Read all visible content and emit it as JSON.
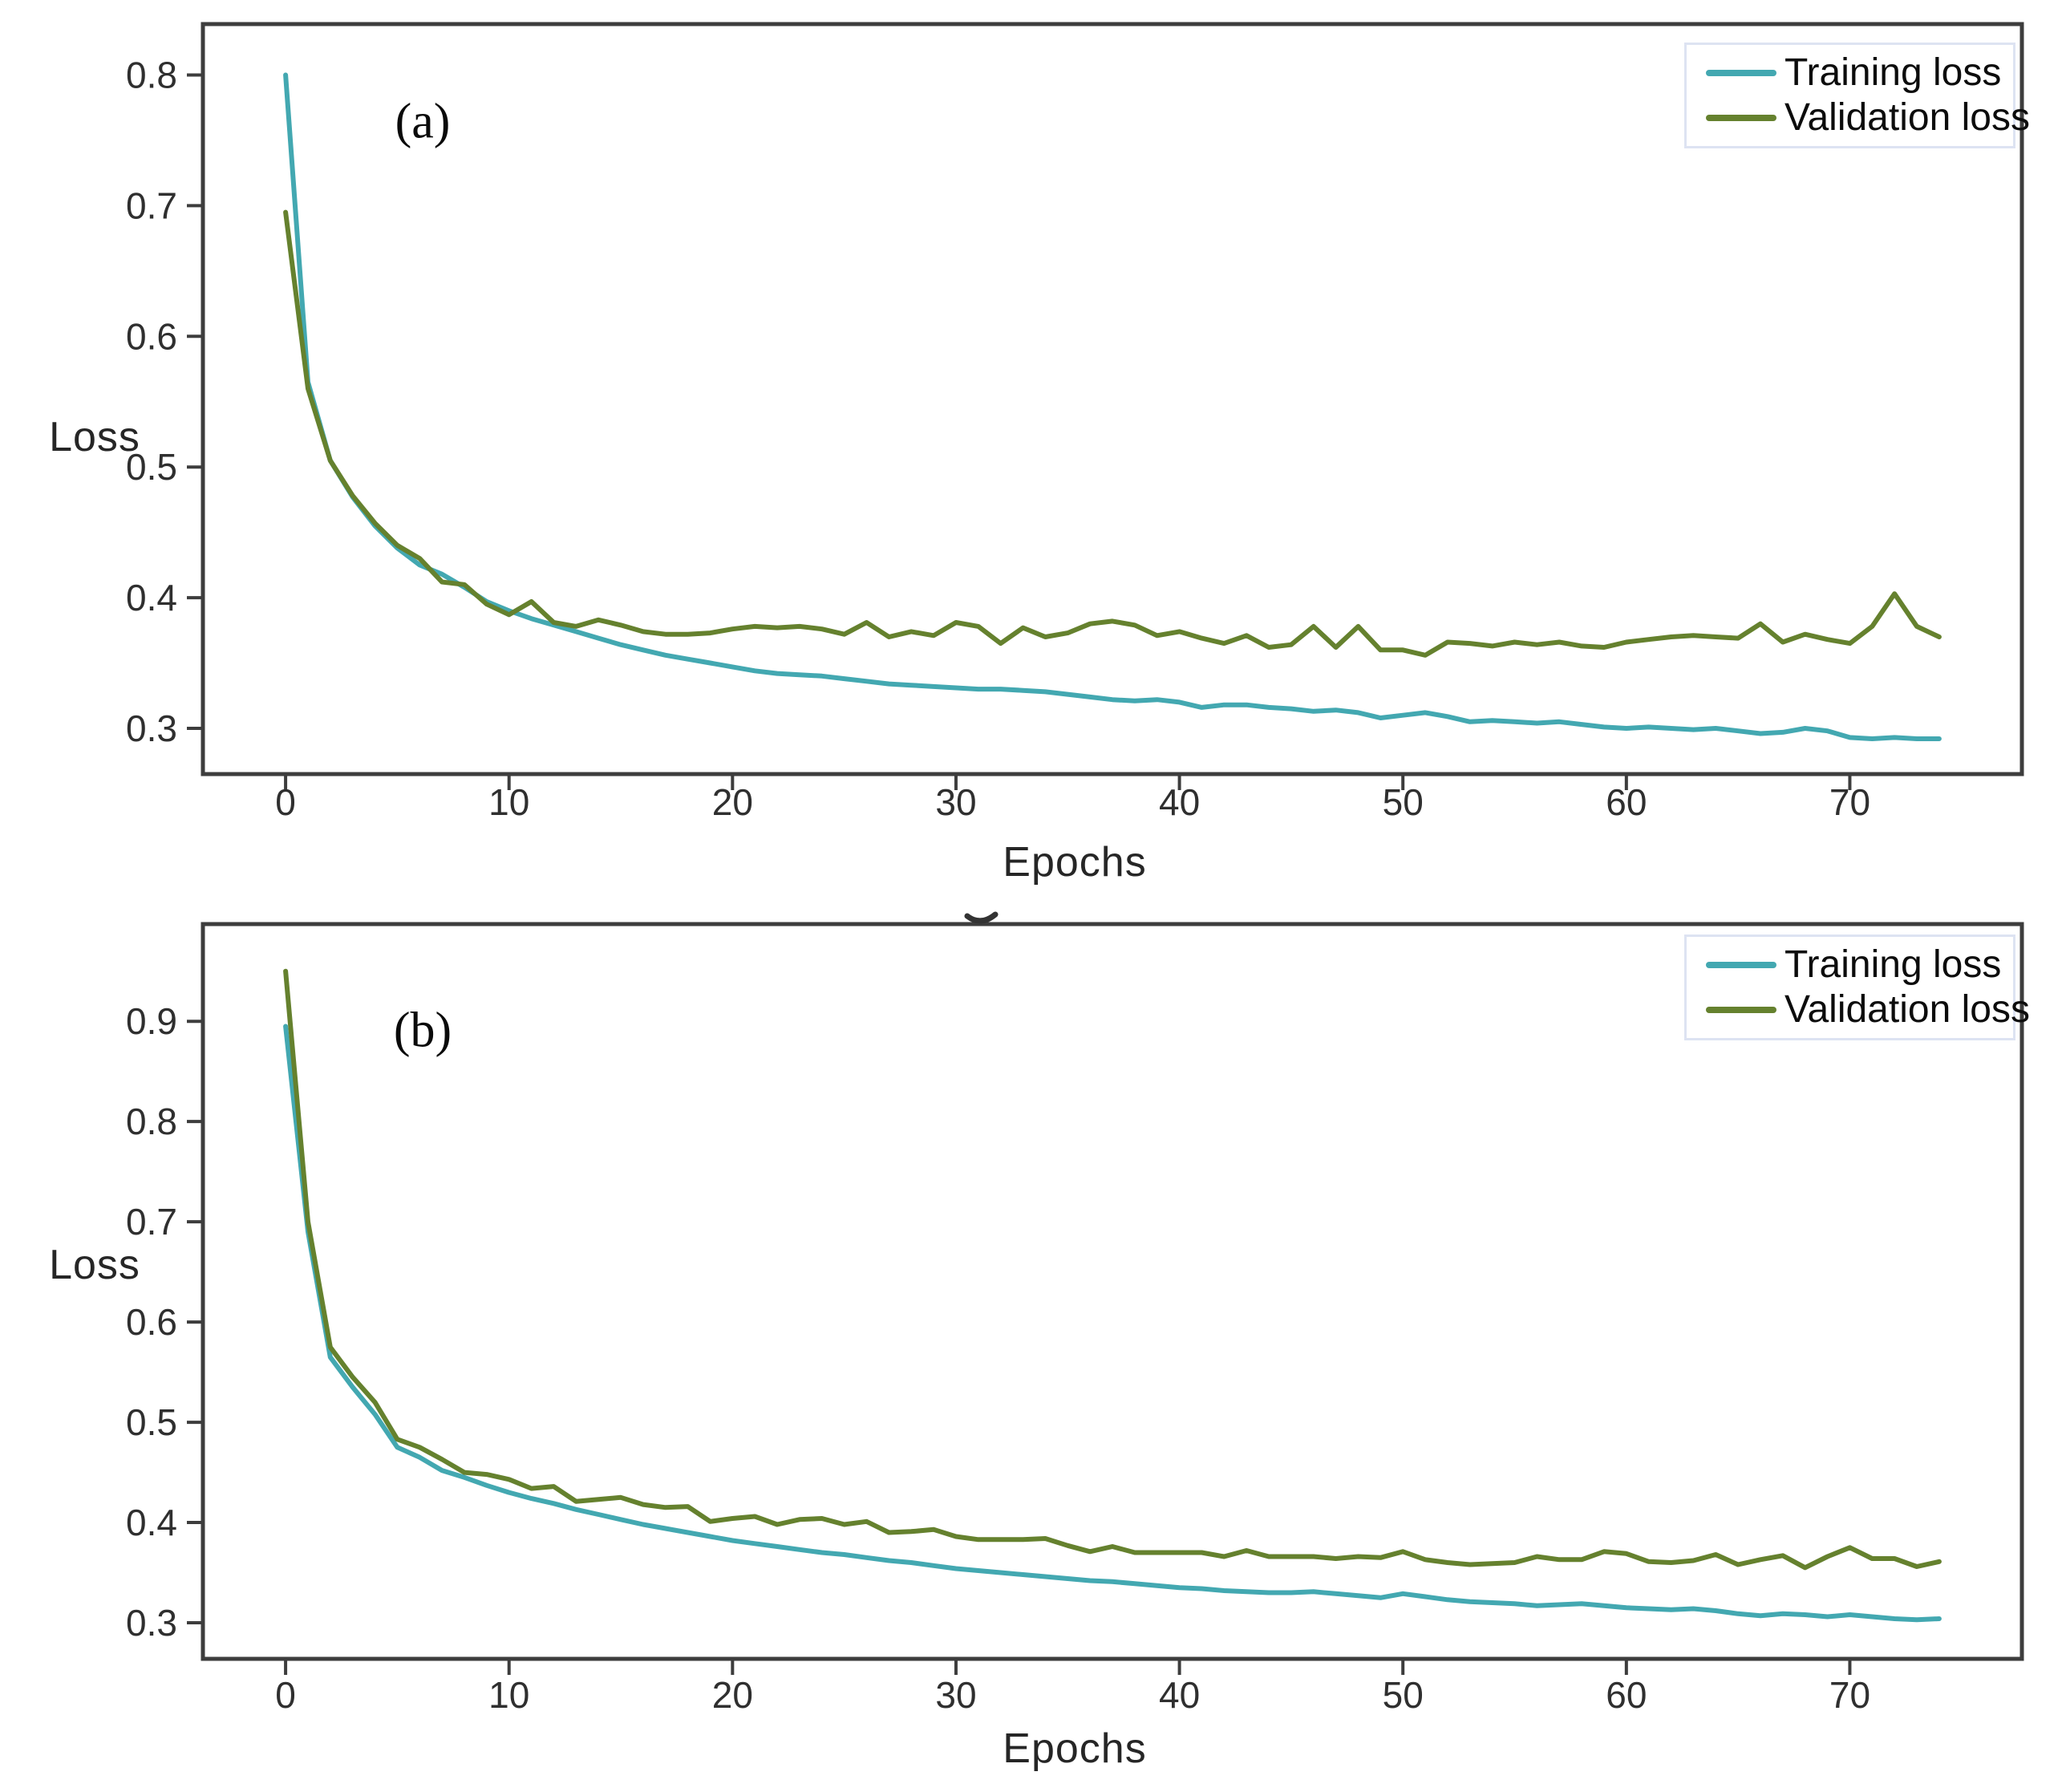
{
  "figure": {
    "background": "#ffffff",
    "axis_color": "#3d3d3d",
    "tick_label_color": "#2f2f2f",
    "train_color": "#43a8b1",
    "val_color": "#65812e",
    "legend_border_color": "#dde3f2"
  },
  "chart_data": [
    {
      "id": "panel-a",
      "type": "line",
      "panel_label": "(a)",
      "xlabel": "Epochs",
      "ylabel": "Loss",
      "x_ticks": [
        0,
        10,
        20,
        30,
        40,
        50,
        60,
        70
      ],
      "y_ticks": [
        0.8,
        0.7,
        0.6,
        0.5,
        0.4,
        0.3
      ],
      "xlim": [
        -3.7,
        77.7
      ],
      "ylim": [
        0.265,
        0.839
      ],
      "x_range": [
        0,
        74
      ],
      "grid": false,
      "legend_position": "upper right",
      "legend": [
        {
          "label": "Training loss",
          "color": "#43a8b1"
        },
        {
          "label": "Validation loss",
          "color": "#65812e"
        }
      ],
      "series": [
        {
          "name": "Training loss",
          "color": "#43a8b1",
          "values": [
            0.8,
            0.565,
            0.505,
            0.477,
            0.455,
            0.438,
            0.425,
            0.418,
            0.408,
            0.397,
            0.39,
            0.384,
            0.379,
            0.374,
            0.369,
            0.364,
            0.36,
            0.356,
            0.353,
            0.35,
            0.347,
            0.344,
            0.342,
            0.341,
            0.34,
            0.338,
            0.336,
            0.334,
            0.333,
            0.332,
            0.331,
            0.33,
            0.33,
            0.329,
            0.328,
            0.326,
            0.324,
            0.322,
            0.321,
            0.322,
            0.32,
            0.316,
            0.318,
            0.318,
            0.316,
            0.315,
            0.313,
            0.314,
            0.312,
            0.308,
            0.31,
            0.312,
            0.309,
            0.305,
            0.306,
            0.305,
            0.304,
            0.305,
            0.303,
            0.301,
            0.3,
            0.301,
            0.3,
            0.299,
            0.3,
            0.298,
            0.296,
            0.297,
            0.3,
            0.298,
            0.293,
            0.292,
            0.293,
            0.292,
            0.292
          ]
        },
        {
          "name": "Validation loss",
          "color": "#65812e",
          "values": [
            0.695,
            0.56,
            0.505,
            0.478,
            0.457,
            0.44,
            0.43,
            0.412,
            0.41,
            0.395,
            0.387,
            0.397,
            0.381,
            0.378,
            0.383,
            0.379,
            0.374,
            0.372,
            0.372,
            0.373,
            0.376,
            0.378,
            0.377,
            0.378,
            0.376,
            0.372,
            0.381,
            0.37,
            0.374,
            0.371,
            0.381,
            0.378,
            0.365,
            0.377,
            0.37,
            0.373,
            0.38,
            0.382,
            0.379,
            0.371,
            0.374,
            0.369,
            0.365,
            0.371,
            0.362,
            0.364,
            0.378,
            0.362,
            0.378,
            0.36,
            0.36,
            0.356,
            0.366,
            0.365,
            0.363,
            0.366,
            0.364,
            0.366,
            0.363,
            0.362,
            0.366,
            0.368,
            0.37,
            0.371,
            0.37,
            0.369,
            0.38,
            0.366,
            0.372,
            0.368,
            0.365,
            0.378,
            0.403,
            0.378,
            0.37
          ]
        }
      ]
    },
    {
      "id": "panel-b",
      "type": "line",
      "panel_label": "(b)",
      "xlabel": "Epochs",
      "ylabel": "Loss",
      "x_ticks": [
        0,
        10,
        20,
        30,
        40,
        50,
        60,
        70
      ],
      "y_ticks": [
        0.9,
        0.8,
        0.7,
        0.6,
        0.5,
        0.4,
        0.3
      ],
      "xlim": [
        -3.7,
        77.7
      ],
      "ylim": [
        0.264,
        0.997
      ],
      "x_range": [
        0,
        74
      ],
      "grid": false,
      "legend_position": "upper right",
      "legend": [
        {
          "label": "Training loss",
          "color": "#43a8b1"
        },
        {
          "label": "Validation loss",
          "color": "#65812e"
        }
      ],
      "series": [
        {
          "name": "Training loss",
          "color": "#43a8b1",
          "values": [
            0.895,
            0.69,
            0.565,
            0.535,
            0.508,
            0.475,
            0.465,
            0.452,
            0.445,
            0.437,
            0.43,
            0.424,
            0.419,
            0.413,
            0.408,
            0.403,
            0.398,
            0.394,
            0.39,
            0.386,
            0.382,
            0.379,
            0.376,
            0.373,
            0.37,
            0.368,
            0.365,
            0.362,
            0.36,
            0.357,
            0.354,
            0.352,
            0.35,
            0.348,
            0.346,
            0.344,
            0.342,
            0.341,
            0.339,
            0.337,
            0.335,
            0.334,
            0.332,
            0.331,
            0.33,
            0.33,
            0.331,
            0.329,
            0.327,
            0.325,
            0.329,
            0.326,
            0.323,
            0.321,
            0.32,
            0.319,
            0.317,
            0.318,
            0.319,
            0.317,
            0.315,
            0.314,
            0.313,
            0.314,
            0.312,
            0.309,
            0.307,
            0.309,
            0.308,
            0.306,
            0.308,
            0.306,
            0.304,
            0.303,
            0.304
          ]
        },
        {
          "name": "Validation loss",
          "color": "#65812e",
          "values": [
            0.95,
            0.7,
            0.575,
            0.545,
            0.52,
            0.483,
            0.475,
            0.463,
            0.45,
            0.448,
            0.443,
            0.434,
            0.436,
            0.421,
            0.423,
            0.425,
            0.418,
            0.415,
            0.416,
            0.401,
            0.404,
            0.406,
            0.398,
            0.403,
            0.404,
            0.398,
            0.401,
            0.39,
            0.391,
            0.393,
            0.386,
            0.383,
            0.383,
            0.383,
            0.384,
            0.377,
            0.371,
            0.376,
            0.37,
            0.37,
            0.37,
            0.37,
            0.366,
            0.372,
            0.366,
            0.366,
            0.366,
            0.364,
            0.366,
            0.365,
            0.371,
            0.363,
            0.36,
            0.358,
            0.359,
            0.36,
            0.366,
            0.363,
            0.363,
            0.371,
            0.369,
            0.361,
            0.36,
            0.362,
            0.368,
            0.358,
            0.363,
            0.367,
            0.355,
            0.366,
            0.375,
            0.364,
            0.364,
            0.356,
            0.361
          ]
        }
      ]
    }
  ]
}
